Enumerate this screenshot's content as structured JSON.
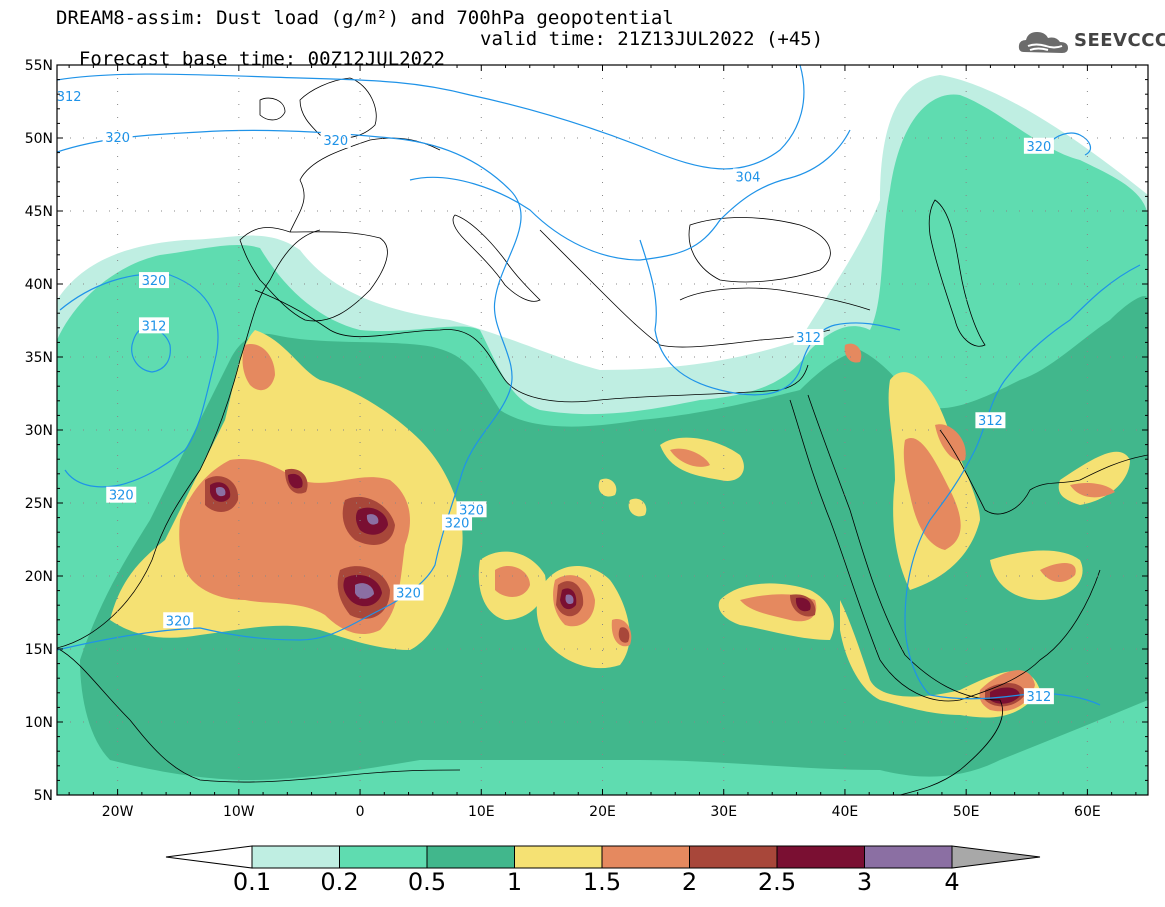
{
  "title": {
    "line1": "DREAM8-assim: Dust load (g/m²) and 700hPa geopotential",
    "line2_base": "Forecast base time: 00Z12JUL2022",
    "line2_valid": "valid time: 21Z13JUL2022 (+45)"
  },
  "logo": {
    "icon": "cloud-icon",
    "text": "SEEVCCC"
  },
  "map": {
    "lon_range": [
      -25,
      65
    ],
    "lat_range": [
      5,
      55
    ],
    "lat_ticks": [
      {
        "v": 55,
        "label": "55N"
      },
      {
        "v": 50,
        "label": "50N"
      },
      {
        "v": 45,
        "label": "45N"
      },
      {
        "v": 40,
        "label": "40N"
      },
      {
        "v": 35,
        "label": "35N"
      },
      {
        "v": 30,
        "label": "30N"
      },
      {
        "v": 25,
        "label": "25N"
      },
      {
        "v": 20,
        "label": "20N"
      },
      {
        "v": 15,
        "label": "15N"
      },
      {
        "v": 10,
        "label": "10N"
      },
      {
        "v": 5,
        "label": "5N"
      }
    ],
    "lon_ticks": [
      {
        "v": -20,
        "label": "20W"
      },
      {
        "v": -10,
        "label": "10W"
      },
      {
        "v": 0,
        "label": "0"
      },
      {
        "v": 10,
        "label": "10E"
      },
      {
        "v": 20,
        "label": "20E"
      },
      {
        "v": 30,
        "label": "30E"
      },
      {
        "v": 40,
        "label": "40E"
      },
      {
        "v": 50,
        "label": "50E"
      },
      {
        "v": 60,
        "label": "60E"
      }
    ],
    "contour_labels": [
      {
        "text": "312",
        "lon": -24,
        "lat": 52.8
      },
      {
        "text": "320",
        "lon": -20,
        "lat": 50.0
      },
      {
        "text": "320",
        "lon": -2,
        "lat": 49.8
      },
      {
        "text": "304",
        "lon": 32,
        "lat": 47.3
      },
      {
        "text": "320",
        "lon": 56,
        "lat": 49.4
      },
      {
        "text": "320",
        "lon": -17,
        "lat": 40.2
      },
      {
        "text": "312",
        "lon": -17,
        "lat": 37.1
      },
      {
        "text": "312",
        "lon": 37,
        "lat": 36.3
      },
      {
        "text": "312",
        "lon": 52,
        "lat": 30.6
      },
      {
        "text": "320",
        "lon": -19.7,
        "lat": 25.5
      },
      {
        "text": "320",
        "lon": 9.2,
        "lat": 24.5
      },
      {
        "text": "320",
        "lon": 8,
        "lat": 23.6
      },
      {
        "text": "320",
        "lon": 4,
        "lat": 18.8
      },
      {
        "text": "320",
        "lon": -15,
        "lat": 16.9
      },
      {
        "text": "312",
        "lon": 56,
        "lat": 11.7
      }
    ]
  },
  "colorbar": {
    "labels": [
      "0.1",
      "0.2",
      "0.5",
      "1",
      "1.5",
      "2",
      "2.5",
      "3",
      "4"
    ],
    "colors": [
      "#bfeee2",
      "#5fdcb0",
      "#41b78c",
      "#f5e173",
      "#e5895f",
      "#a8473a",
      "#7a0f32",
      "#8b6fa3"
    ],
    "under_color": "#ffffff",
    "over_color": "#a8a8a8"
  },
  "colors": {
    "contour": "#1f93e8",
    "coast": "#000000",
    "dust_l1": "#bfeee2",
    "dust_l2": "#5fdcb0",
    "dust_l3": "#41b78c",
    "dust_l4": "#f5e173",
    "dust_l5": "#e5895f",
    "dust_l6": "#a8473a",
    "dust_l7": "#7a0f32",
    "dust_l8": "#8b6fa3"
  }
}
